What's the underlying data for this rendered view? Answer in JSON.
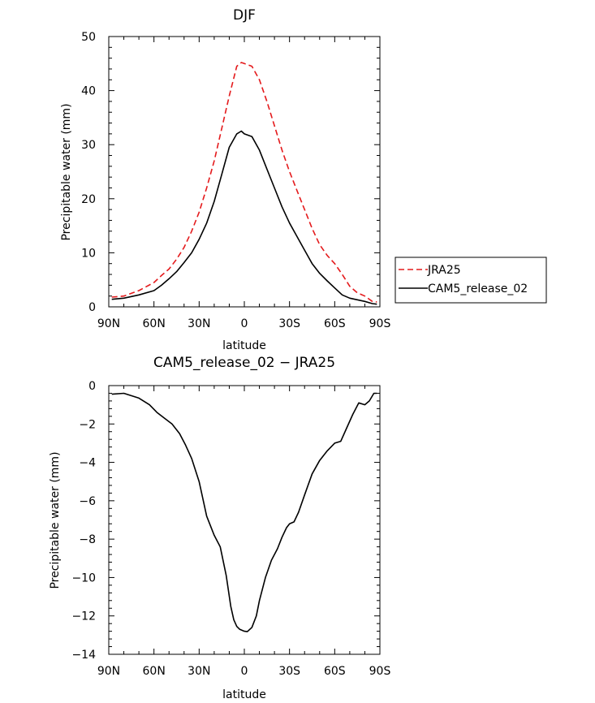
{
  "chart_data": [
    {
      "type": "line",
      "title": "DJF",
      "xlabel": "latitude",
      "ylabel": "Precipitable water (mm)",
      "xlim": [
        90,
        -90
      ],
      "ylim": [
        0,
        50
      ],
      "x_tick_values": [
        90,
        60,
        30,
        0,
        -30,
        -60,
        -90
      ],
      "x_tick_labels": [
        "90N",
        "60N",
        "30N",
        "0",
        "30S",
        "60S",
        "90S"
      ],
      "y_tick_values": [
        0,
        10,
        20,
        30,
        40,
        50
      ],
      "y_tick_labels": [
        "0",
        "10",
        "20",
        "30",
        "40",
        "50"
      ],
      "legend": {
        "placement": "right",
        "entries": [
          {
            "label": "JRA25",
            "color": "#e41a1c",
            "dash": "dashed"
          },
          {
            "label": "CAM5_release_02",
            "color": "#000000",
            "dash": "solid"
          }
        ]
      },
      "series": [
        {
          "name": "JRA25",
          "color": "#e41a1c",
          "dash": "dashed",
          "x": [
            88,
            80,
            70,
            60,
            55,
            50,
            45,
            40,
            35,
            30,
            25,
            20,
            15,
            10,
            5,
            2,
            0,
            -5,
            -10,
            -15,
            -20,
            -25,
            -30,
            -35,
            -40,
            -45,
            -50,
            -55,
            -60,
            -65,
            -70,
            -75,
            -80,
            -85,
            -88
          ],
          "y": [
            1.8,
            2.0,
            3.0,
            4.5,
            5.8,
            7.0,
            8.8,
            11.0,
            14.0,
            17.5,
            22.0,
            27.0,
            33.0,
            39.0,
            44.5,
            45.2,
            45.0,
            44.5,
            42.0,
            38.0,
            33.5,
            29.0,
            25.0,
            21.5,
            18.0,
            14.5,
            11.5,
            9.5,
            8.0,
            6.0,
            3.8,
            2.6,
            2.0,
            1.0,
            0.9
          ]
        },
        {
          "name": "CAM5_release_02",
          "color": "#000000",
          "dash": "solid",
          "x": [
            88,
            80,
            70,
            60,
            55,
            50,
            45,
            40,
            35,
            30,
            25,
            20,
            15,
            10,
            5,
            2,
            0,
            -5,
            -10,
            -15,
            -20,
            -25,
            -30,
            -35,
            -40,
            -45,
            -50,
            -55,
            -60,
            -65,
            -70,
            -75,
            -80,
            -85,
            -88
          ],
          "y": [
            1.4,
            1.6,
            2.2,
            3.0,
            4.0,
            5.2,
            6.5,
            8.2,
            10.0,
            12.5,
            15.5,
            19.5,
            24.5,
            29.5,
            32.0,
            32.5,
            32.0,
            31.5,
            29.0,
            25.5,
            22.0,
            18.5,
            15.5,
            13.0,
            10.5,
            8.0,
            6.2,
            4.8,
            3.5,
            2.2,
            1.6,
            1.3,
            1.0,
            0.6,
            0.5
          ]
        }
      ]
    },
    {
      "type": "line",
      "title": "CAM5_release_02 − JRA25",
      "xlabel": "latitude",
      "ylabel": "Precipitable water (mm)",
      "xlim": [
        90,
        -90
      ],
      "ylim": [
        -14,
        0
      ],
      "x_tick_values": [
        90,
        60,
        30,
        0,
        -30,
        -60,
        -90
      ],
      "x_tick_labels": [
        "90N",
        "60N",
        "30N",
        "0",
        "30S",
        "60S",
        "90S"
      ],
      "y_tick_values": [
        0,
        -2,
        -4,
        -6,
        -8,
        -10,
        -12,
        -14
      ],
      "y_tick_labels": [
        "0",
        "−2",
        "−4",
        "−6",
        "−8",
        "−10",
        "−12",
        "−14"
      ],
      "series": [
        {
          "color": "#000000",
          "dash": "solid",
          "x": [
            88,
            80,
            70,
            63,
            58,
            53,
            48,
            43,
            39,
            35,
            30,
            25,
            20,
            16,
            12,
            9,
            7,
            5,
            3,
            0,
            -2,
            -5,
            -8,
            -10,
            -14,
            -18,
            -22,
            -25,
            -28,
            -30,
            -33,
            -36,
            -40,
            -45,
            -50,
            -55,
            -60,
            -64,
            -68,
            -72,
            -76,
            -80,
            -83,
            -86,
            -88
          ],
          "y": [
            -0.45,
            -0.4,
            -0.65,
            -1.0,
            -1.4,
            -1.7,
            -2.0,
            -2.5,
            -3.1,
            -3.8,
            -5.0,
            -6.8,
            -7.8,
            -8.4,
            -9.9,
            -11.5,
            -12.2,
            -12.55,
            -12.7,
            -12.8,
            -12.82,
            -12.6,
            -12.0,
            -11.2,
            -10.0,
            -9.1,
            -8.5,
            -7.9,
            -7.4,
            -7.2,
            -7.1,
            -6.6,
            -5.7,
            -4.6,
            -3.9,
            -3.4,
            -3.0,
            -2.9,
            -2.2,
            -1.5,
            -0.9,
            -1.0,
            -0.8,
            -0.4,
            -0.4
          ]
        }
      ]
    }
  ]
}
